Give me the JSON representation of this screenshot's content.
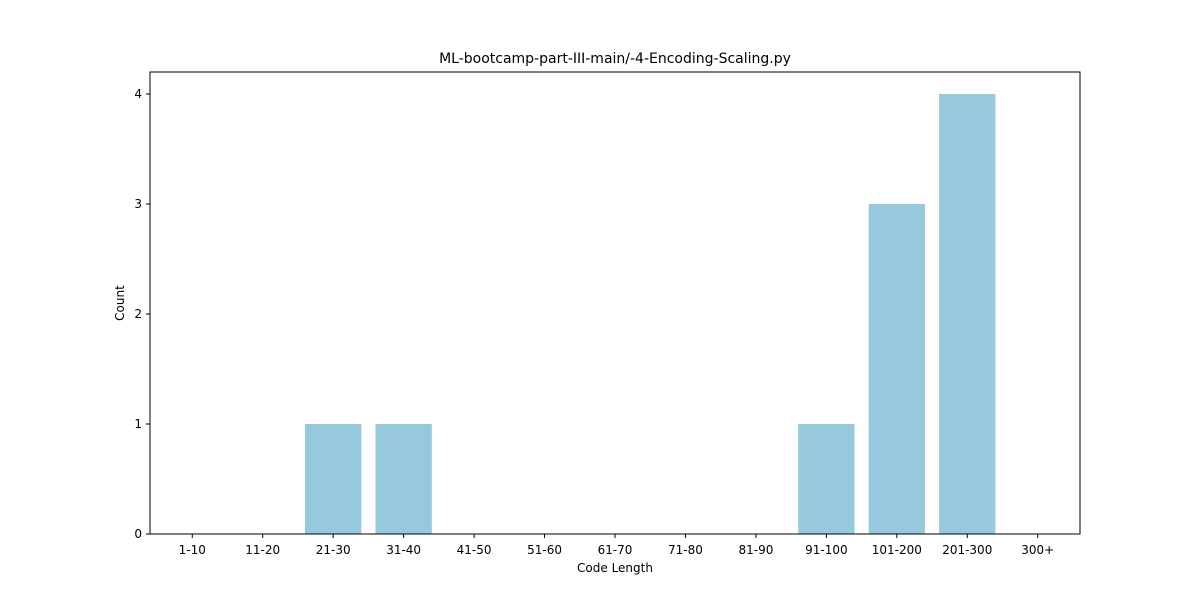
{
  "chart_data": {
    "type": "bar",
    "title": "ML-bootcamp-part-III-main/-4-Encoding-Scaling.py",
    "xlabel": "Code Length",
    "ylabel": "Count",
    "categories": [
      "1-10",
      "11-20",
      "21-30",
      "31-40",
      "41-50",
      "51-60",
      "61-70",
      "71-80",
      "81-90",
      "91-100",
      "101-200",
      "201-300",
      "300+"
    ],
    "values": [
      0,
      0,
      1,
      1,
      0,
      0,
      0,
      0,
      0,
      1,
      3,
      4,
      0
    ],
    "ylim": [
      0,
      4.2
    ],
    "yticks": [
      0,
      1,
      2,
      3,
      4
    ],
    "bar_color": "#96c9dd",
    "grid": false,
    "legend": "none"
  }
}
